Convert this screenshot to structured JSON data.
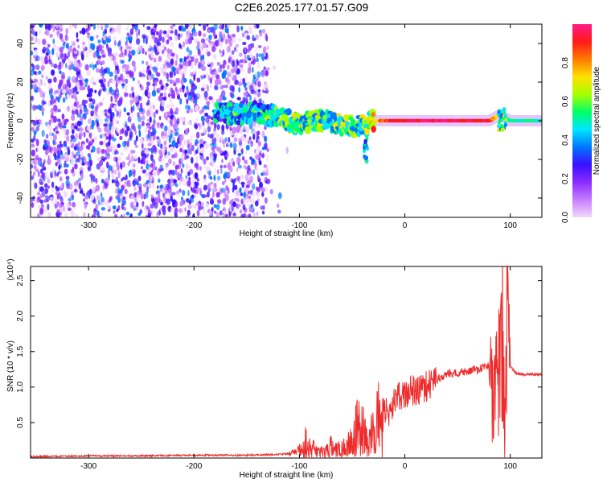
{
  "title": "C2E6.2025.177.01.57.G09",
  "chart_data": [
    {
      "type": "heatmap",
      "panel": "spectrogram",
      "xlabel": "Height of straight line (km)",
      "ylabel": "Frequency (Hz)",
      "xlim": [
        -355,
        130
      ],
      "ylim": [
        -50,
        50
      ],
      "xticks": [
        -300,
        -200,
        -100,
        0,
        100
      ],
      "yticks": [
        -40,
        -20,
        0,
        20,
        40
      ],
      "colorbar": {
        "label": "Normalized spectral amplitude",
        "range": [
          0,
          1
        ],
        "ticks": [
          "0.0",
          "0.2",
          "0.4",
          "0.6",
          "0.8"
        ],
        "colormap": [
          "#f2d8fb",
          "#c77dff",
          "#8b2cff",
          "#3a10ff",
          "#0077ff",
          "#00e5ff",
          "#00ff66",
          "#a8ff00",
          "#ffe000",
          "#ff7a00",
          "#ff1a1a",
          "#ff1a8a"
        ]
      },
      "noise_region_x": [
        -355,
        -130
      ],
      "signal_track": [
        {
          "x": -180,
          "f": 5,
          "a": 0.4
        },
        {
          "x": -160,
          "f": 3,
          "a": 0.45
        },
        {
          "x": -140,
          "f": 4,
          "a": 0.45
        },
        {
          "x": -120,
          "f": 2,
          "a": 0.5
        },
        {
          "x": -100,
          "f": -2,
          "a": 0.5
        },
        {
          "x": -80,
          "f": 1,
          "a": 0.52
        },
        {
          "x": -60,
          "f": -2,
          "a": 0.55
        },
        {
          "x": -40,
          "f": -3,
          "a": 0.55
        },
        {
          "x": -30,
          "f": 0,
          "a": 0.7
        },
        {
          "x": -20,
          "f": 0,
          "a": 0.85
        },
        {
          "x": 0,
          "f": 0,
          "a": 0.9
        },
        {
          "x": 20,
          "f": 0,
          "a": 0.92
        },
        {
          "x": 40,
          "f": 0,
          "a": 0.92
        },
        {
          "x": 60,
          "f": 0,
          "a": 0.9
        },
        {
          "x": 80,
          "f": 0,
          "a": 0.88
        },
        {
          "x": 90,
          "f": 3,
          "a": 0.6
        },
        {
          "x": 100,
          "f": 0,
          "a": 0.5
        },
        {
          "x": 130,
          "f": 0,
          "a": 0.5
        }
      ]
    },
    {
      "type": "line",
      "panel": "snr",
      "xlabel": "Height of straight line (km)",
      "ylabel": "SNR (10 * v/v)",
      "y_multiplier": "(x10⁴)",
      "xlim": [
        -355,
        130
      ],
      "ylim": [
        0,
        2.7
      ],
      "xticks": [
        -300,
        -200,
        -100,
        0,
        100
      ],
      "yticks": [
        0.5,
        1.0,
        1.5,
        2.0,
        2.5
      ],
      "line_color": "#ee2a2a",
      "series": [
        {
          "x": [
            -355,
            -300,
            -250,
            -200,
            -150,
            -120,
            -110,
            -100,
            -95,
            -90,
            -80,
            -70,
            -60,
            -50,
            -45,
            -40,
            -35,
            -30,
            -25,
            -20,
            -15,
            -10,
            -5,
            0,
            5,
            10,
            20,
            30,
            40,
            50,
            60,
            70,
            80,
            85,
            90,
            93,
            95,
            97,
            100,
            105,
            110,
            120,
            130
          ],
          "values": [
            0.02,
            0.03,
            0.03,
            0.04,
            0.04,
            0.05,
            0.06,
            0.12,
            0.3,
            0.18,
            0.12,
            0.2,
            0.15,
            0.3,
            0.55,
            0.45,
            0.6,
            0.4,
            0.7,
            0.65,
            0.6,
            0.8,
            0.9,
            0.85,
            0.95,
            0.95,
            1.0,
            1.1,
            1.2,
            1.2,
            1.22,
            1.25,
            1.3,
            1.4,
            1.6,
            2.7,
            0.2,
            2.5,
            1.3,
            1.2,
            1.18,
            1.18,
            1.18
          ]
        }
      ]
    }
  ]
}
